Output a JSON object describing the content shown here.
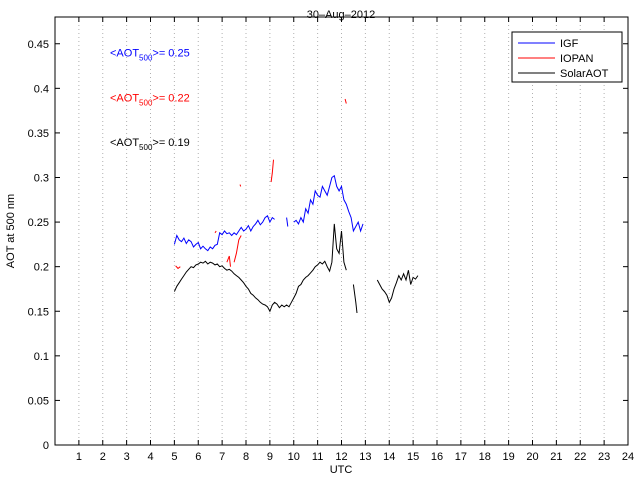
{
  "chart_data": {
    "type": "line",
    "title": "30–Aug–2012",
    "xlabel": "UTC",
    "ylabel": "AOT at 500 nm",
    "xlim": [
      0,
      24
    ],
    "ylim": [
      0,
      0.48
    ],
    "xticks": [
      1,
      2,
      3,
      4,
      5,
      6,
      7,
      8,
      9,
      10,
      11,
      12,
      13,
      14,
      15,
      16,
      17,
      18,
      19,
      20,
      21,
      22,
      23,
      24
    ],
    "yticks": [
      0,
      0.05,
      0.1,
      0.15,
      0.2,
      0.25,
      0.3,
      0.35,
      0.4,
      0.45
    ],
    "ytick_labels": [
      "0",
      "0.05",
      "0.1",
      "0.15",
      "0.2",
      "0.25",
      "0.3",
      "0.35",
      "0.4",
      "0.45"
    ],
    "grid": "vertical dotted",
    "legend_position": "top-right",
    "annotations": [
      {
        "prefix": "<AOT",
        "sub": "500",
        "suffix": ">= 0.25",
        "color": "#0000ff"
      },
      {
        "prefix": "<AOT",
        "sub": "500",
        "suffix": ">= 0.22",
        "color": "#ff0000"
      },
      {
        "prefix": "<AOT",
        "sub": "500",
        "suffix": ">= 0.19",
        "color": "#000000"
      }
    ],
    "series": [
      {
        "name": "IGF",
        "color": "#0000ff",
        "segments": [
          [
            [
              5.0,
              0.225
            ],
            [
              5.1,
              0.235
            ],
            [
              5.2,
              0.23
            ],
            [
              5.3,
              0.228
            ],
            [
              5.4,
              0.232
            ],
            [
              5.5,
              0.226
            ],
            [
              5.6,
              0.23
            ],
            [
              5.7,
              0.228
            ],
            [
              5.8,
              0.222
            ],
            [
              5.9,
              0.225
            ],
            [
              6.0,
              0.227
            ],
            [
              6.1,
              0.22
            ],
            [
              6.2,
              0.223
            ],
            [
              6.3,
              0.22
            ],
            [
              6.4,
              0.218
            ],
            [
              6.5,
              0.222
            ],
            [
              6.6,
              0.22
            ],
            [
              6.7,
              0.224
            ],
            [
              6.8,
              0.225
            ],
            [
              6.9,
              0.238
            ],
            [
              7.0,
              0.236
            ],
            [
              7.1,
              0.24
            ],
            [
              7.2,
              0.237
            ],
            [
              7.3,
              0.238
            ],
            [
              7.4,
              0.235
            ],
            [
              7.5,
              0.238
            ],
            [
              7.6,
              0.236
            ],
            [
              7.7,
              0.24
            ],
            [
              7.8,
              0.244
            ],
            [
              7.9,
              0.24
            ],
            [
              8.0,
              0.242
            ],
            [
              8.1,
              0.246
            ],
            [
              8.2,
              0.24
            ],
            [
              8.3,
              0.245
            ],
            [
              8.4,
              0.248
            ],
            [
              8.5,
              0.252
            ],
            [
              8.6,
              0.247
            ],
            [
              8.7,
              0.25
            ],
            [
              8.8,
              0.255
            ],
            [
              8.9,
              0.257
            ],
            [
              9.0,
              0.25
            ],
            [
              9.1,
              0.255
            ],
            [
              9.2,
              0.253
            ]
          ],
          [
            [
              9.7,
              0.255
            ],
            [
              9.75,
              0.245
            ]
          ],
          [
            [
              10.0,
              0.25
            ],
            [
              10.1,
              0.252
            ],
            [
              10.2,
              0.248
            ],
            [
              10.3,
              0.255
            ],
            [
              10.4,
              0.25
            ],
            [
              10.5,
              0.265
            ],
            [
              10.6,
              0.26
            ],
            [
              10.7,
              0.275
            ],
            [
              10.8,
              0.27
            ],
            [
              10.9,
              0.285
            ],
            [
              11.0,
              0.28
            ],
            [
              11.1,
              0.278
            ],
            [
              11.2,
              0.29
            ],
            [
              11.3,
              0.285
            ],
            [
              11.4,
              0.28
            ],
            [
              11.5,
              0.29
            ],
            [
              11.6,
              0.3
            ],
            [
              11.7,
              0.302
            ],
            [
              11.8,
              0.29
            ],
            [
              11.9,
              0.285
            ],
            [
              12.0,
              0.29
            ],
            [
              12.1,
              0.275
            ],
            [
              12.2,
              0.27
            ],
            [
              12.3,
              0.262
            ],
            [
              12.4,
              0.255
            ],
            [
              12.5,
              0.24
            ],
            [
              12.6,
              0.245
            ],
            [
              12.7,
              0.25
            ],
            [
              12.8,
              0.24
            ],
            [
              12.9,
              0.248
            ]
          ]
        ]
      },
      {
        "name": "IOPAN",
        "color": "#ff0000",
        "segments": [
          [
            [
              5.05,
              0.201
            ],
            [
              5.15,
              0.198
            ],
            [
              5.25,
              0.2
            ]
          ],
          [
            [
              6.7,
              0.238
            ],
            [
              6.75,
              0.24
            ]
          ],
          [
            [
              7.2,
              0.205
            ],
            [
              7.3,
              0.212
            ],
            [
              7.35,
              0.2
            ]
          ],
          [
            [
              7.5,
              0.205
            ],
            [
              7.6,
              0.215
            ],
            [
              7.7,
              0.23
            ],
            [
              7.8,
              0.235
            ]
          ],
          [
            [
              7.75,
              0.292
            ],
            [
              7.78,
              0.29
            ]
          ],
          [
            [
              9.05,
              0.295
            ],
            [
              9.1,
              0.305
            ],
            [
              9.15,
              0.32
            ]
          ],
          [
            [
              12.15,
              0.388
            ],
            [
              12.2,
              0.383
            ]
          ]
        ]
      },
      {
        "name": "SolarAOT",
        "color": "#000000",
        "segments": [
          [
            [
              5.0,
              0.172
            ],
            [
              5.1,
              0.178
            ],
            [
              5.2,
              0.182
            ],
            [
              5.3,
              0.186
            ],
            [
              5.4,
              0.19
            ],
            [
              5.5,
              0.194
            ],
            [
              5.6,
              0.197
            ],
            [
              5.7,
              0.2
            ],
            [
              5.8,
              0.199
            ],
            [
              5.9,
              0.202
            ],
            [
              6.0,
              0.203
            ],
            [
              6.1,
              0.205
            ],
            [
              6.2,
              0.204
            ],
            [
              6.3,
              0.206
            ],
            [
              6.4,
              0.203
            ],
            [
              6.5,
              0.205
            ],
            [
              6.6,
              0.204
            ],
            [
              6.7,
              0.202
            ],
            [
              6.8,
              0.203
            ],
            [
              6.9,
              0.2
            ],
            [
              7.0,
              0.201
            ],
            [
              7.1,
              0.198
            ],
            [
              7.2,
              0.196
            ],
            [
              7.3,
              0.197
            ],
            [
              7.4,
              0.195
            ],
            [
              7.5,
              0.192
            ],
            [
              7.6,
              0.19
            ],
            [
              7.7,
              0.188
            ],
            [
              7.8,
              0.185
            ],
            [
              7.9,
              0.182
            ],
            [
              8.0,
              0.178
            ],
            [
              8.1,
              0.175
            ],
            [
              8.2,
              0.17
            ],
            [
              8.3,
              0.168
            ],
            [
              8.4,
              0.165
            ],
            [
              8.5,
              0.163
            ],
            [
              8.6,
              0.16
            ],
            [
              8.7,
              0.158
            ],
            [
              8.8,
              0.157
            ],
            [
              8.9,
              0.155
            ],
            [
              9.0,
              0.15
            ],
            [
              9.1,
              0.157
            ],
            [
              9.2,
              0.16
            ],
            [
              9.3,
              0.158
            ],
            [
              9.4,
              0.154
            ],
            [
              9.5,
              0.157
            ],
            [
              9.6,
              0.155
            ],
            [
              9.7,
              0.157
            ],
            [
              9.8,
              0.155
            ],
            [
              9.9,
              0.16
            ],
            [
              10.0,
              0.165
            ],
            [
              10.1,
              0.17
            ],
            [
              10.2,
              0.178
            ],
            [
              10.3,
              0.18
            ],
            [
              10.4,
              0.185
            ],
            [
              10.5,
              0.188
            ],
            [
              10.6,
              0.19
            ],
            [
              10.7,
              0.193
            ],
            [
              10.8,
              0.196
            ],
            [
              10.9,
              0.2
            ],
            [
              11.0,
              0.202
            ],
            [
              11.1,
              0.205
            ],
            [
              11.2,
              0.203
            ],
            [
              11.3,
              0.206
            ],
            [
              11.4,
              0.2
            ],
            [
              11.5,
              0.195
            ],
            [
              11.6,
              0.205
            ],
            [
              11.7,
              0.248
            ],
            [
              11.8,
              0.22
            ],
            [
              11.9,
              0.215
            ],
            [
              12.0,
              0.24
            ],
            [
              12.1,
              0.205
            ],
            [
              12.2,
              0.196
            ]
          ],
          [
            [
              12.5,
              0.18
            ],
            [
              12.6,
              0.16
            ],
            [
              12.65,
              0.148
            ]
          ],
          [
            [
              13.5,
              0.185
            ],
            [
              13.6,
              0.18
            ],
            [
              13.7,
              0.175
            ],
            [
              13.8,
              0.172
            ],
            [
              13.9,
              0.168
            ],
            [
              14.0,
              0.16
            ],
            [
              14.1,
              0.165
            ],
            [
              14.2,
              0.175
            ],
            [
              14.3,
              0.182
            ],
            [
              14.4,
              0.19
            ],
            [
              14.5,
              0.185
            ],
            [
              14.6,
              0.192
            ],
            [
              14.7,
              0.185
            ],
            [
              14.8,
              0.196
            ],
            [
              14.9,
              0.18
            ],
            [
              15.0,
              0.188
            ],
            [
              15.1,
              0.186
            ],
            [
              15.2,
              0.19
            ]
          ]
        ]
      }
    ]
  }
}
